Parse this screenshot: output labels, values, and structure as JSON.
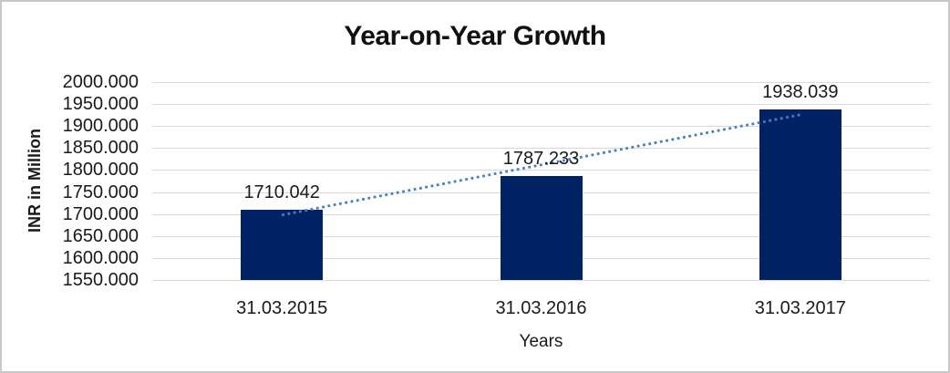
{
  "window": {
    "background": "#ffffff",
    "border_color": "#c8c8c8"
  },
  "chart_data": {
    "type": "bar",
    "title": "Year-on-Year Growth",
    "categories": [
      "31.03.2015",
      "31.03.2016",
      "31.03.2017"
    ],
    "values": [
      1710.042,
      1787.233,
      1938.039
    ],
    "data_labels": [
      "1710.042",
      "1787.233",
      "1938.039"
    ],
    "xlabel": "Years",
    "ylabel": "INR in Million",
    "ylim": [
      1550,
      2000
    ],
    "ytick_step": 50,
    "ytick_labels": [
      "2000.000",
      "1950.000",
      "1900.000",
      "1850.000",
      "1800.000",
      "1750.000",
      "1700.000",
      "1650.000",
      "1600.000",
      "1550.000"
    ],
    "grid": true,
    "gridline_color": "#d9d9d9",
    "bar_color": "#002264",
    "text_color": "#1a1a1a",
    "legend": "none",
    "trendline": {
      "type": "linear",
      "style": "dotted",
      "color": "#4a7ebb",
      "start_value": 1697.77,
      "end_value": 1925.77
    }
  }
}
